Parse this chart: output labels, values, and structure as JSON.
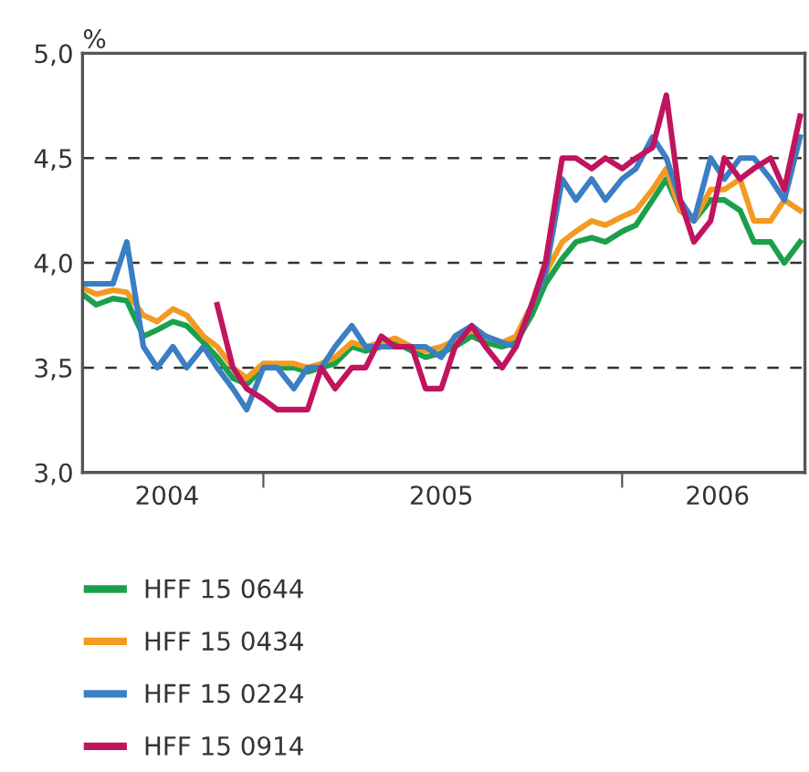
{
  "chart_data": {
    "type": "line",
    "ylabel": "%",
    "ylim": [
      3.0,
      5.0
    ],
    "yticks": [
      {
        "value": 3.0,
        "label": "3,0"
      },
      {
        "value": 3.5,
        "label": "3,5"
      },
      {
        "value": 4.0,
        "label": "4,0"
      },
      {
        "value": 4.5,
        "label": "4,5"
      },
      {
        "value": 5.0,
        "label": "5,0"
      }
    ],
    "xlim": [
      "2004-07-01",
      "2006-07-06"
    ],
    "xticks": [
      {
        "value": "2005-01-01",
        "label": null
      },
      {
        "value": "2006-01-01",
        "label": null
      },
      {
        "value": "2004-09-25",
        "label": "2004"
      },
      {
        "value": "2005-07-01",
        "label": "2005"
      },
      {
        "value": "2006-04-08",
        "label": "2006"
      }
    ],
    "grid": "y",
    "legend": "bottom",
    "line_style": "solid",
    "marker": "none",
    "series": [
      {
        "name": "HFF 15 0644",
        "color": "#1aa04b",
        "x": [
          "2004-07-01",
          "2004-07-15",
          "2004-08-01",
          "2004-08-15",
          "2004-09-01",
          "2004-09-15",
          "2004-10-01",
          "2004-10-15",
          "2004-11-01",
          "2004-11-15",
          "2004-12-01",
          "2004-12-15",
          "2005-01-01",
          "2005-01-15",
          "2005-02-01",
          "2005-02-15",
          "2005-03-01",
          "2005-03-15",
          "2005-04-01",
          "2005-04-15",
          "2005-05-01",
          "2005-05-15",
          "2005-06-01",
          "2005-06-15",
          "2005-07-01",
          "2005-07-15",
          "2005-08-01",
          "2005-08-15",
          "2005-09-01",
          "2005-09-15",
          "2005-10-01",
          "2005-10-15",
          "2005-11-01",
          "2005-11-15",
          "2005-12-01",
          "2005-12-15",
          "2006-01-01",
          "2006-01-15",
          "2006-02-01",
          "2006-02-15",
          "2006-03-01",
          "2006-03-15",
          "2006-04-01",
          "2006-04-15",
          "2006-05-01",
          "2006-05-15",
          "2006-06-01",
          "2006-06-15",
          "2006-07-01"
        ],
        "values": [
          3.85,
          3.8,
          3.83,
          3.82,
          3.65,
          3.68,
          3.72,
          3.7,
          3.62,
          3.55,
          3.45,
          3.42,
          3.5,
          3.5,
          3.5,
          3.48,
          3.5,
          3.52,
          3.6,
          3.58,
          3.6,
          3.62,
          3.58,
          3.55,
          3.57,
          3.6,
          3.65,
          3.62,
          3.6,
          3.62,
          3.75,
          3.9,
          4.02,
          4.1,
          4.12,
          4.1,
          4.15,
          4.18,
          4.3,
          4.4,
          4.25,
          4.2,
          4.3,
          4.3,
          4.25,
          4.1,
          4.1,
          4.0,
          4.1
        ]
      },
      {
        "name": "HFF 15 0434",
        "color": "#f39a21",
        "x": [
          "2004-07-01",
          "2004-07-15",
          "2004-08-01",
          "2004-08-15",
          "2004-09-01",
          "2004-09-15",
          "2004-10-01",
          "2004-10-15",
          "2004-11-01",
          "2004-11-15",
          "2004-12-01",
          "2004-12-15",
          "2005-01-01",
          "2005-01-15",
          "2005-02-01",
          "2005-02-15",
          "2005-03-01",
          "2005-03-15",
          "2005-04-01",
          "2005-04-15",
          "2005-05-01",
          "2005-05-15",
          "2005-06-01",
          "2005-06-15",
          "2005-07-01",
          "2005-07-15",
          "2005-08-01",
          "2005-08-15",
          "2005-09-01",
          "2005-09-15",
          "2005-10-01",
          "2005-10-15",
          "2005-11-01",
          "2005-11-15",
          "2005-12-01",
          "2005-12-15",
          "2006-01-01",
          "2006-01-15",
          "2006-02-01",
          "2006-02-15",
          "2006-03-01",
          "2006-03-15",
          "2006-04-01",
          "2006-04-15",
          "2006-05-01",
          "2006-05-15",
          "2006-06-01",
          "2006-06-15",
          "2006-07-01"
        ],
        "values": [
          3.88,
          3.85,
          3.87,
          3.86,
          3.75,
          3.72,
          3.78,
          3.75,
          3.65,
          3.6,
          3.5,
          3.45,
          3.52,
          3.52,
          3.52,
          3.5,
          3.52,
          3.55,
          3.62,
          3.6,
          3.62,
          3.64,
          3.6,
          3.58,
          3.6,
          3.63,
          3.68,
          3.65,
          3.62,
          3.65,
          3.8,
          3.95,
          4.1,
          4.15,
          4.2,
          4.18,
          4.22,
          4.25,
          4.35,
          4.45,
          4.25,
          4.2,
          4.35,
          4.35,
          4.4,
          4.2,
          4.2,
          4.3,
          4.25
        ]
      },
      {
        "name": "HFF 15 0224",
        "color": "#3a7ec4",
        "x": [
          "2004-07-01",
          "2004-07-15",
          "2004-08-01",
          "2004-08-15",
          "2004-09-01",
          "2004-09-15",
          "2004-10-01",
          "2004-10-15",
          "2004-11-01",
          "2004-11-15",
          "2004-12-01",
          "2004-12-15",
          "2005-01-01",
          "2005-01-15",
          "2005-02-01",
          "2005-02-15",
          "2005-03-01",
          "2005-03-15",
          "2005-04-01",
          "2005-04-15",
          "2005-05-01",
          "2005-05-15",
          "2005-06-01",
          "2005-06-15",
          "2005-07-01",
          "2005-07-15",
          "2005-08-01",
          "2005-08-15",
          "2005-09-01",
          "2005-09-15",
          "2005-10-01",
          "2005-10-15",
          "2005-11-01",
          "2005-11-15",
          "2005-12-01",
          "2005-12-15",
          "2006-01-01",
          "2006-01-15",
          "2006-02-01",
          "2006-02-15",
          "2006-03-01",
          "2006-03-15",
          "2006-04-01",
          "2006-04-15",
          "2006-05-01",
          "2006-05-15",
          "2006-06-01",
          "2006-06-15",
          "2006-07-01"
        ],
        "values": [
          3.9,
          3.9,
          3.9,
          4.1,
          3.6,
          3.5,
          3.6,
          3.5,
          3.6,
          3.5,
          3.4,
          3.3,
          3.5,
          3.5,
          3.4,
          3.5,
          3.5,
          3.6,
          3.7,
          3.6,
          3.6,
          3.6,
          3.6,
          3.6,
          3.55,
          3.65,
          3.7,
          3.65,
          3.62,
          3.6,
          3.8,
          3.95,
          4.4,
          4.3,
          4.4,
          4.3,
          4.4,
          4.45,
          4.6,
          4.5,
          4.3,
          4.2,
          4.5,
          4.4,
          4.5,
          4.5,
          4.4,
          4.3,
          4.6
        ]
      },
      {
        "name": "HFF 15 0914",
        "color": "#c0145f",
        "x": [
          "2004-11-15",
          "2004-12-01",
          "2004-12-15",
          "2005-01-01",
          "2005-01-15",
          "2005-02-01",
          "2005-02-15",
          "2005-03-01",
          "2005-03-15",
          "2005-04-01",
          "2005-04-15",
          "2005-05-01",
          "2005-05-15",
          "2005-06-01",
          "2005-06-15",
          "2005-07-01",
          "2005-07-15",
          "2005-08-01",
          "2005-08-15",
          "2005-09-01",
          "2005-09-15",
          "2005-10-01",
          "2005-10-15",
          "2005-11-01",
          "2005-11-15",
          "2005-12-01",
          "2005-12-15",
          "2006-01-01",
          "2006-01-15",
          "2006-02-01",
          "2006-02-15",
          "2006-03-01",
          "2006-03-15",
          "2006-04-01",
          "2006-04-15",
          "2006-05-01",
          "2006-05-15",
          "2006-06-01",
          "2006-06-15",
          "2006-07-01"
        ],
        "values": [
          3.8,
          3.5,
          3.4,
          3.35,
          3.3,
          3.3,
          3.3,
          3.5,
          3.4,
          3.5,
          3.5,
          3.65,
          3.6,
          3.6,
          3.4,
          3.4,
          3.6,
          3.7,
          3.6,
          3.5,
          3.6,
          3.8,
          4.0,
          4.5,
          4.5,
          4.45,
          4.5,
          4.45,
          4.5,
          4.55,
          4.8,
          4.3,
          4.1,
          4.2,
          4.5,
          4.4,
          4.45,
          4.5,
          4.35,
          4.7
        ]
      }
    ]
  }
}
